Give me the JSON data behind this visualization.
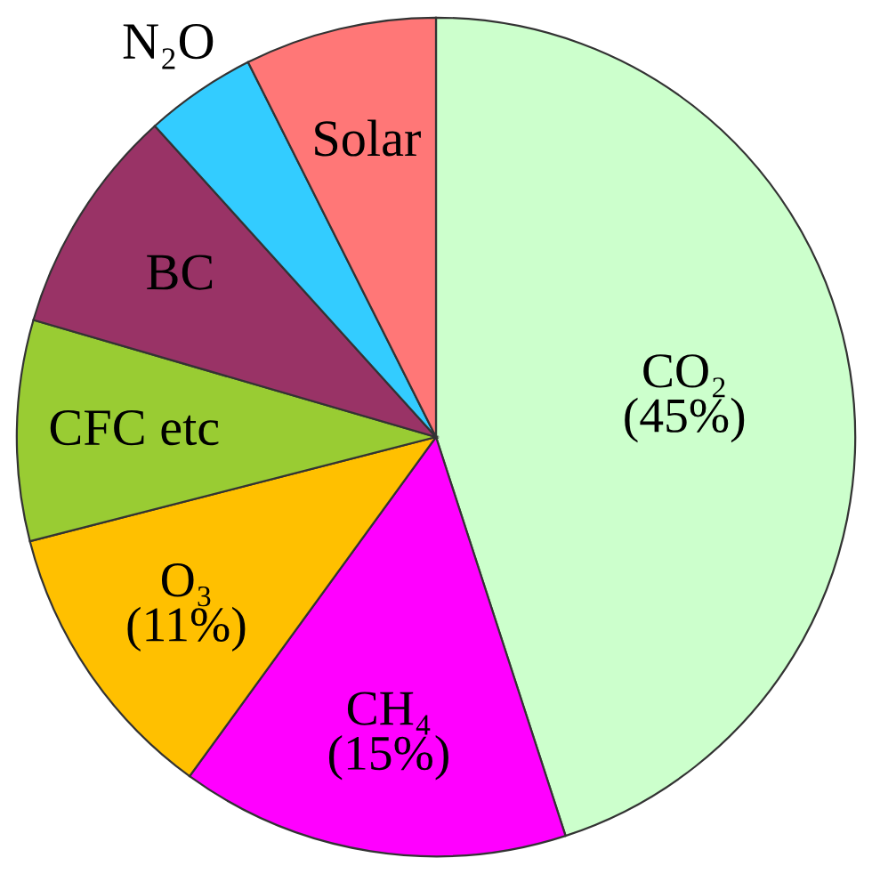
{
  "chart_data": {
    "type": "pie",
    "categories": [
      "CO₂",
      "CH₄",
      "O₃",
      "CFC etc",
      "BC",
      "N₂O",
      "Solar"
    ],
    "values": [
      45,
      15,
      11,
      8.5,
      8.8,
      4.3,
      7.4
    ],
    "value_labels": [
      "(45%)",
      "(15%)",
      "(11%)",
      null,
      null,
      null,
      null
    ],
    "colors": [
      "#ccffcc",
      "#ff00ff",
      "#ffc000",
      "#99cc33",
      "#993366",
      "#33ccff",
      "#ff7777"
    ]
  }
}
